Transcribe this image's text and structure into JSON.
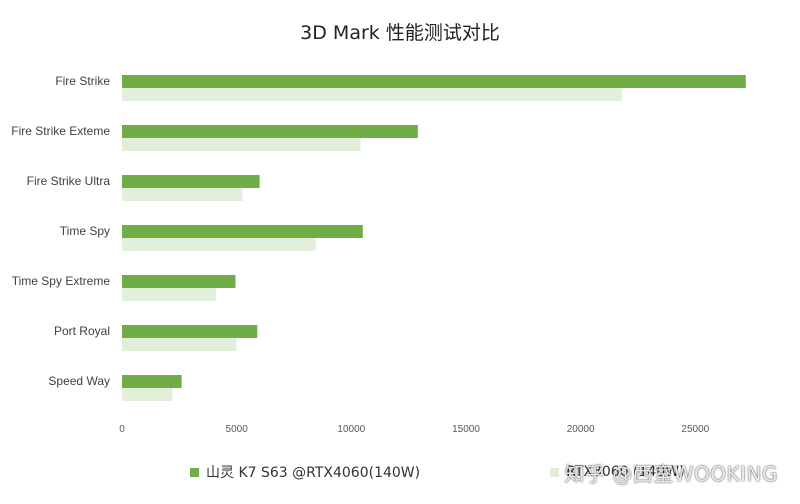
{
  "chart_data": {
    "type": "bar",
    "orientation": "horizontal",
    "title": "3D Mark 性能测试对比",
    "categories": [
      "Fire Strike",
      "Fire Strike Exteme",
      "Fire Strike Ultra",
      "Time Spy",
      "Time Spy Extreme",
      "Port Royal",
      "Speed Way"
    ],
    "series": [
      {
        "name": "山灵 K7 S63 @RTX4060(140W)",
        "color": "#70ad47",
        "values": [
          27200,
          12900,
          6000,
          10500,
          4950,
          5900,
          2600
        ]
      },
      {
        "name": "RTX3060 (140W)",
        "color": "#e2efda",
        "values": [
          21800,
          10400,
          5250,
          8450,
          4100,
          5000,
          2200
        ]
      }
    ],
    "xlim": [
      0,
      30000
    ],
    "x_ticks": [
      "0",
      "5000",
      "10000",
      "15000",
      "20000",
      "25000"
    ],
    "grid": false,
    "legend_position": "bottom"
  },
  "watermark": "知乎 @西室WOOKING"
}
